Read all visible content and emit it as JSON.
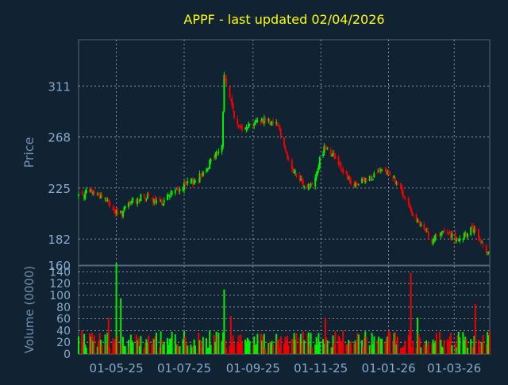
{
  "chart_data": [
    {
      "type": "candlestick",
      "title": "APPF - last updated 02/04/2026",
      "ylabel": "Price",
      "ylim": [
        160,
        350
      ],
      "yticks": [
        "160",
        "182",
        "225",
        "268",
        "311"
      ],
      "yticks_values": [
        160,
        182,
        225,
        268,
        311
      ],
      "xtick_labels": [
        "01-05-25",
        "01-07-25",
        "01-09-25",
        "01-11-25",
        "01-01-26",
        "01-03-26"
      ],
      "xtick_dates": [
        "2025-05-01",
        "2025-07-01",
        "2025-09-01",
        "2025-11-01",
        "2026-01-01",
        "2026-03-01"
      ],
      "x_start": "2025-03-28",
      "x_end": "2026-04-02",
      "grid": true,
      "colors": {
        "background": "#112233",
        "axes": "#556677",
        "grid": "#aaaaaa",
        "up": "#00ee00",
        "down": "#ee0000",
        "title": "#ffff00",
        "tick_label": "#88aacc"
      },
      "series": [
        {
          "name": "close",
          "x": [
            "2025-03-28",
            "2025-04-08",
            "2025-04-20",
            "2025-05-03",
            "2025-05-15",
            "2025-05-27",
            "2025-06-08",
            "2025-06-20",
            "2025-07-02",
            "2025-07-14",
            "2025-07-26",
            "2025-08-04",
            "2025-08-06",
            "2025-08-12",
            "2025-08-18",
            "2025-08-30",
            "2025-09-11",
            "2025-09-23",
            "2025-10-05",
            "2025-10-17",
            "2025-10-25",
            "2025-11-01",
            "2025-11-05",
            "2025-11-17",
            "2025-11-29",
            "2025-12-11",
            "2025-12-23",
            "2026-01-04",
            "2026-01-16",
            "2026-01-28",
            "2026-02-09",
            "2026-02-21",
            "2026-03-05",
            "2026-03-17",
            "2026-03-29",
            "2026-04-02"
          ],
          "values": [
            219,
            222,
            217,
            201,
            214,
            218,
            211,
            221,
            227,
            233,
            249,
            260,
            320,
            298,
            276,
            279,
            283,
            280,
            242,
            226,
            228,
            252,
            261,
            247,
            226,
            232,
            238,
            237,
            215,
            195,
            182,
            188,
            179,
            191,
            174,
            170
          ]
        }
      ]
    },
    {
      "type": "bar",
      "ylabel": "Volume (0000)",
      "ylim": [
        0,
        150
      ],
      "yticks": [
        "0",
        "20",
        "40",
        "60",
        "80",
        "100",
        "120",
        "140"
      ],
      "yticks_values": [
        0,
        20,
        40,
        60,
        80,
        100,
        120,
        140
      ],
      "typical_volume": 25,
      "volume_spikes": [
        {
          "x": "2025-05-01",
          "value": 155
        },
        {
          "x": "2025-05-05",
          "value": 95
        },
        {
          "x": "2025-04-24",
          "value": 62
        },
        {
          "x": "2025-08-06",
          "value": 110
        },
        {
          "x": "2025-08-12",
          "value": 65
        },
        {
          "x": "2025-11-01",
          "value": 90
        },
        {
          "x": "2025-11-05",
          "value": 62
        },
        {
          "x": "2026-01-21",
          "value": 138
        },
        {
          "x": "2026-01-27",
          "value": 62
        },
        {
          "x": "2026-02-28",
          "value": 55
        },
        {
          "x": "2026-03-20",
          "value": 85
        }
      ]
    }
  ]
}
